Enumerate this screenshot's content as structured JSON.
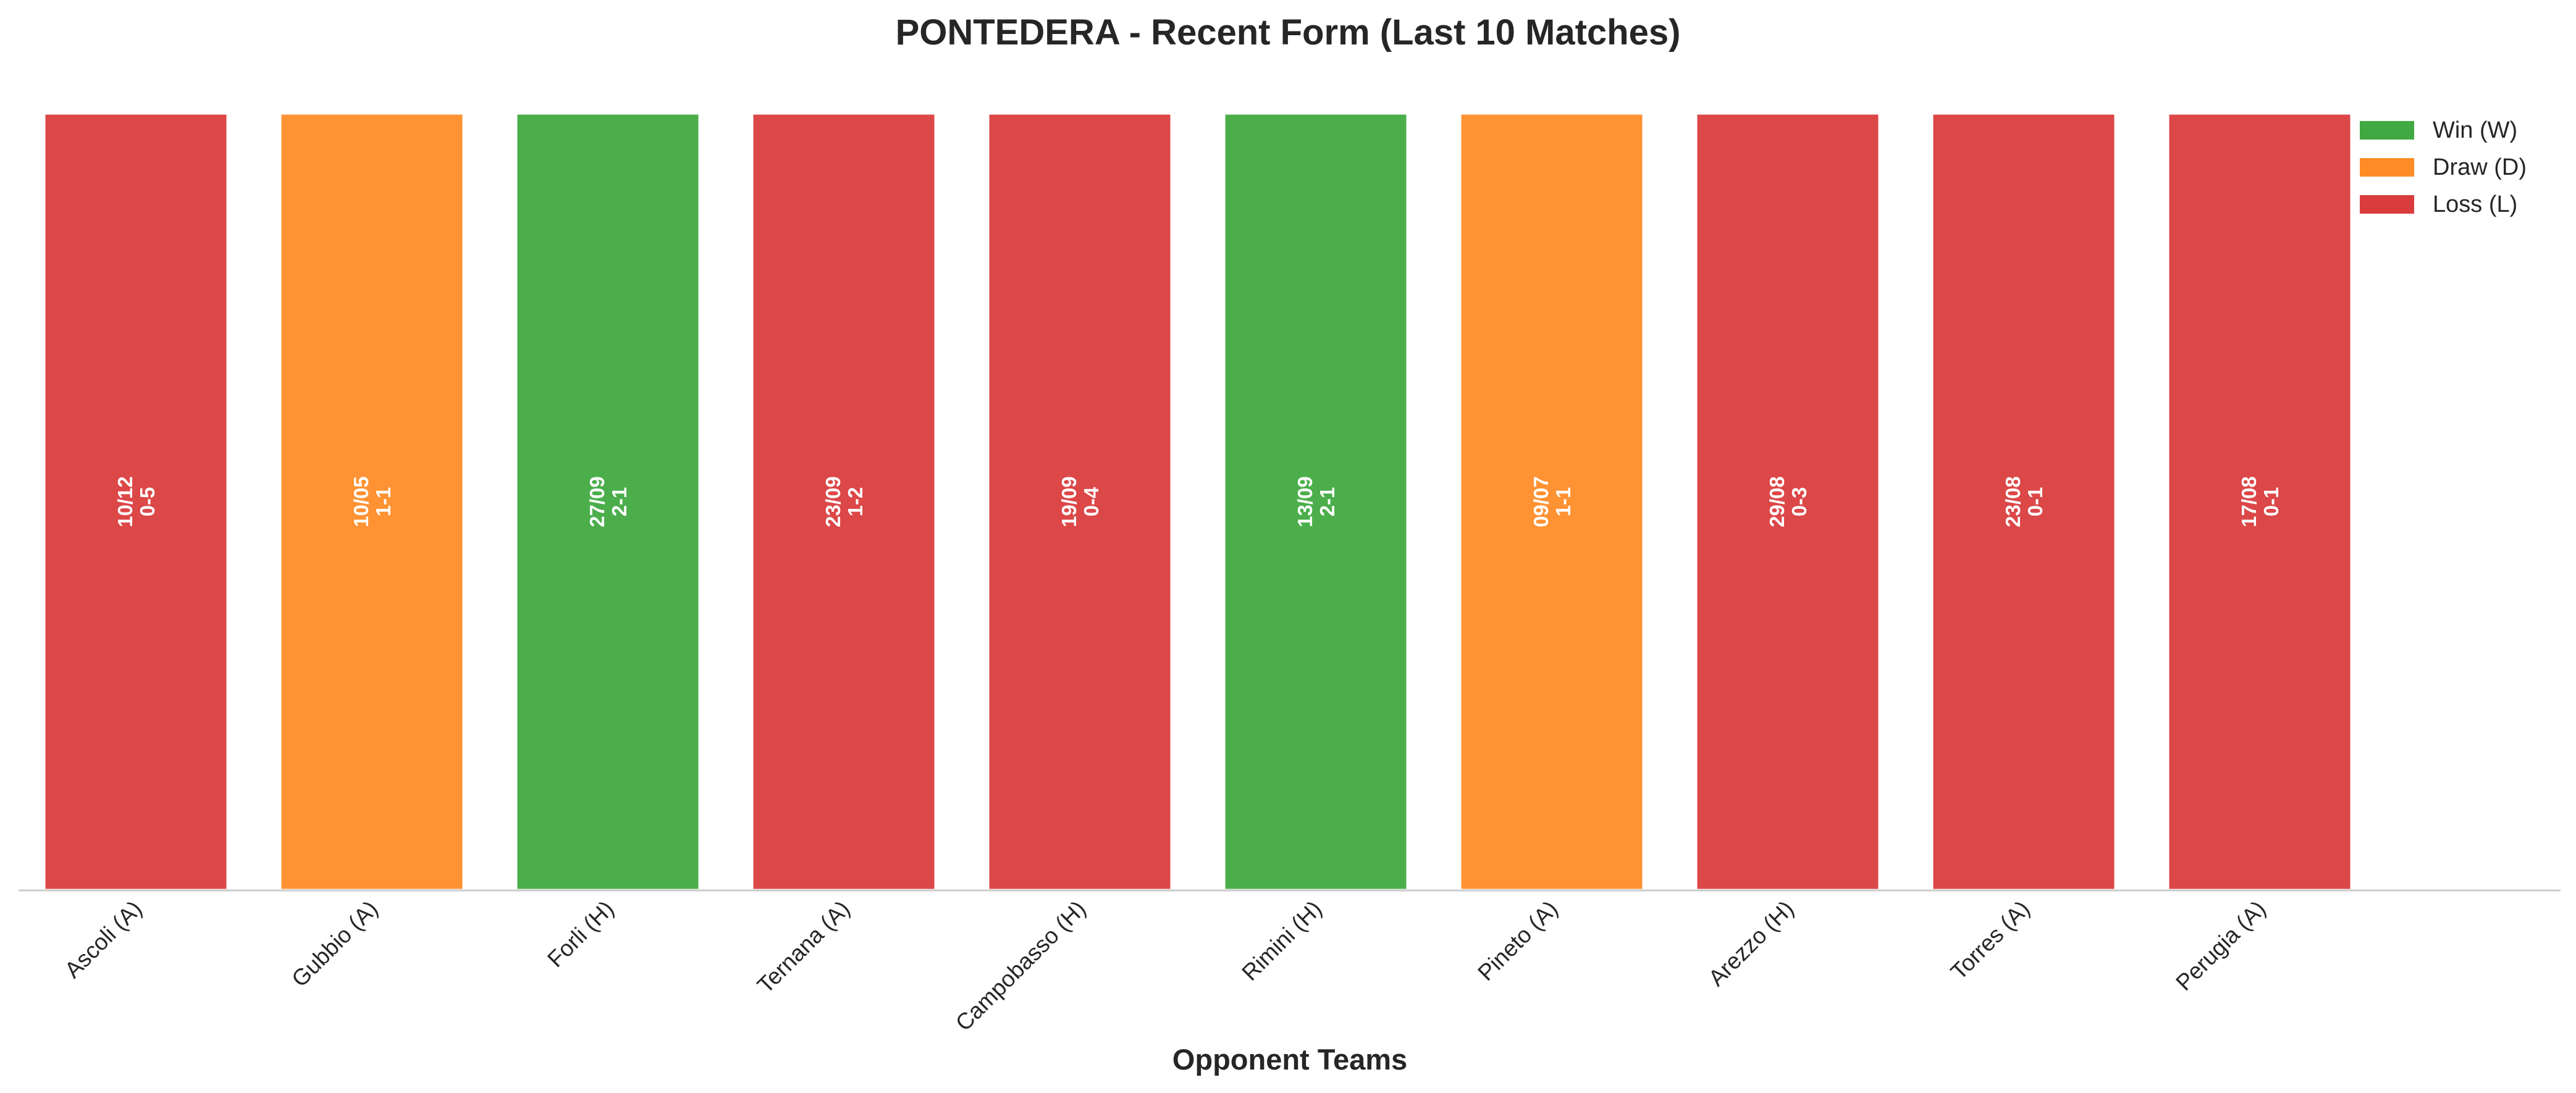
{
  "chart_data": {
    "type": "bar",
    "title": "PONTEDERA - Recent Form (Last 10 Matches)",
    "xlabel": "Opponent Teams",
    "ylabel": "",
    "categories": [
      "Ascoli (A)",
      "Gubbio (A)",
      "Forli (H)",
      "Ternana (A)",
      "Campobasso (H)",
      "Rimini (H)",
      "Pineto (A)",
      "Arezzo (H)",
      "Torres (A)",
      "Perugia (A)"
    ],
    "values": [
      1,
      1,
      1,
      1,
      1,
      1,
      1,
      1,
      1,
      1
    ],
    "results": [
      "L",
      "D",
      "W",
      "L",
      "L",
      "W",
      "D",
      "L",
      "L",
      "L"
    ],
    "dates": [
      "10/12",
      "10/05",
      "27/09",
      "23/09",
      "19/09",
      "13/09",
      "09/07",
      "29/08",
      "23/08",
      "17/08"
    ],
    "scores": [
      "0-5",
      "1-1",
      "2-1",
      "1-2",
      "0-4",
      "2-1",
      "1-1",
      "0-3",
      "0-1",
      "0-1"
    ],
    "ylim": [
      0,
      1.12
    ],
    "grid": false,
    "legend_position": "top-right",
    "legend": [
      {
        "key": "W",
        "label": "Win (W)",
        "color": "#2ca02c"
      },
      {
        "key": "D",
        "label": "Draw (D)",
        "color": "#ff7f0e"
      },
      {
        "key": "L",
        "label": "Loss (L)",
        "color": "#d62728"
      }
    ]
  }
}
